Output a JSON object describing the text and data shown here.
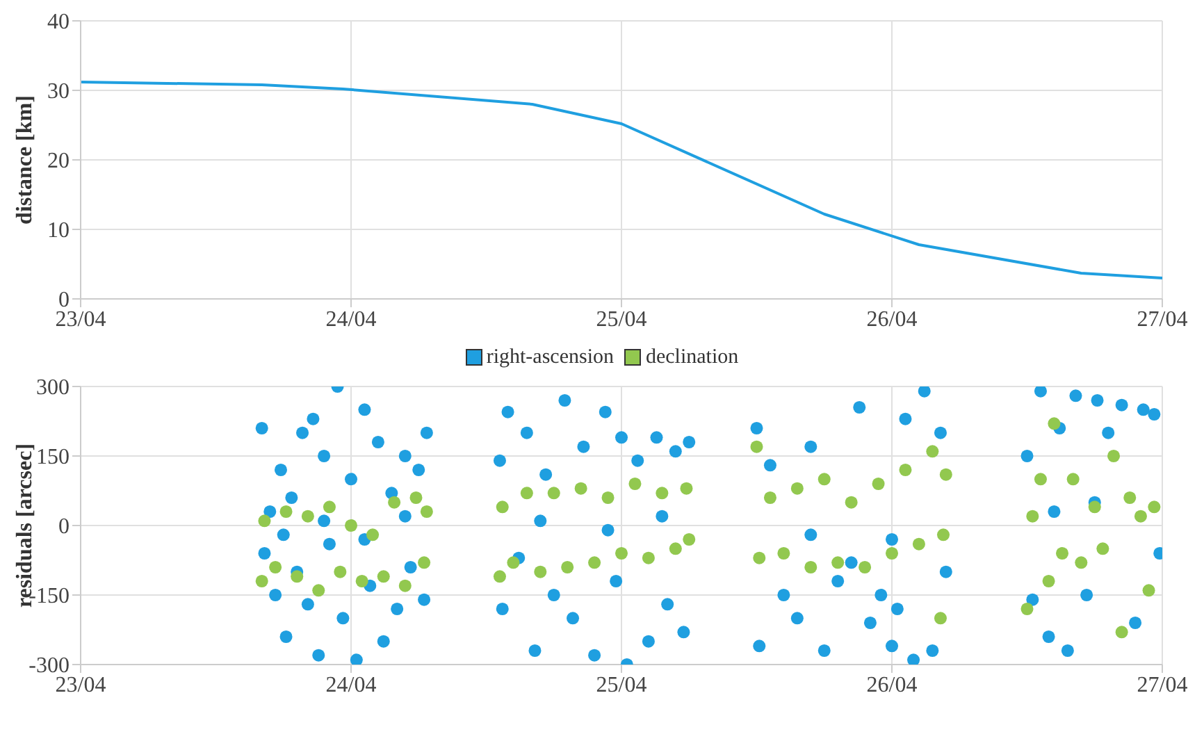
{
  "chart_data": [
    {
      "type": "line",
      "ylabel": "distance [km]",
      "x": [
        "--04-23T00:00",
        "--04-23T16:05",
        "--04-23T23:17",
        "--04-24T16:05",
        "--04-25T00:00",
        "--04-25T18:00",
        "--04-26T02:24",
        "--04-26T16:48",
        "--04-27T00:00"
      ],
      "series": [
        {
          "color": "#1f9fe0",
          "values": [
            31.2,
            30.8,
            30.2,
            28,
            25.2,
            12.2,
            7.8,
            3.7,
            3.0
          ]
        }
      ],
      "xlim": [
        "--04-23",
        "--04-27"
      ],
      "xticks": [
        {
          "value": "--04-23",
          "label": "23/04"
        },
        {
          "value": "--04-24",
          "label": "24/04"
        },
        {
          "value": "--04-25",
          "label": "25/04"
        },
        {
          "value": "--04-26",
          "label": "26/04"
        },
        {
          "value": "--04-27",
          "label": "27/04"
        }
      ],
      "ylim": [
        0,
        40
      ],
      "yticks": [
        0,
        10,
        20,
        30,
        40
      ],
      "grid": true,
      "marker": "none",
      "line_style": "solid"
    },
    {
      "type": "scatter",
      "ylabel": "residuals [arcsec]",
      "legend": "top",
      "grid": true,
      "marker": "circle",
      "series": [
        {
          "name": "right-ascension",
          "color": "#1f9fe0",
          "x": [
            "--04-23T16:05",
            "--04-23T16:19",
            "--04-23T16:48",
            "--04-23T17:17",
            "--04-23T17:46",
            "--04-23T18:14",
            "--04-23T18:43",
            "--04-23T19:12",
            "--04-23T19:41",
            "--04-23T20:10",
            "--04-23T20:38",
            "--04-23T21:07",
            "--04-23T21:36",
            "--04-23T22:05",
            "--04-23T22:48",
            "--04-23T23:17",
            "--04-24T00:00",
            "--04-24T00:29",
            "--04-24T01:12",
            "--04-24T01:41",
            "--04-24T02:24",
            "--04-24T02:53",
            "--04-24T03:36",
            "--04-24T04:05",
            "--04-24T04:48",
            "--04-24T05:17",
            "--04-24T06:00",
            "--04-24T06:29",
            "--04-24T06:43",
            "--04-23T18:00",
            "--04-23T21:36",
            "--04-24T01:12",
            "--04-24T04:48",
            "--04-24T13:12",
            "--04-24T13:26",
            "--04-24T13:55",
            "--04-24T14:53",
            "--04-24T15:36",
            "--04-24T16:19",
            "--04-24T17:17",
            "--04-24T18:00",
            "--04-24T18:58",
            "--04-24T19:41",
            "--04-24T20:38",
            "--04-24T21:36",
            "--04-24T22:34",
            "--04-24T23:31",
            "--04-25T00:00",
            "--04-25T00:29",
            "--04-25T01:26",
            "--04-25T02:24",
            "--04-25T03:07",
            "--04-25T04:05",
            "--04-25T04:48",
            "--04-25T05:31",
            "--04-25T06:00",
            "--04-24T16:48",
            "--04-24T22:48",
            "--04-25T03:36",
            "--04-25T12:00",
            "--04-25T12:14",
            "--04-25T13:12",
            "--04-25T14:24",
            "--04-25T15:36",
            "--04-25T16:48",
            "--04-25T18:00",
            "--04-25T19:12",
            "--04-25T20:24",
            "--04-25T21:07",
            "--04-25T22:05",
            "--04-25T23:02",
            "--04-26T00:00",
            "--04-26T00:29",
            "--04-26T01:12",
            "--04-26T01:55",
            "--04-26T02:53",
            "--04-26T03:36",
            "--04-26T04:19",
            "--04-26T04:48",
            "--04-25T16:48",
            "--04-26T00:00",
            "--04-26T12:00",
            "--04-26T12:29",
            "--04-26T13:12",
            "--04-26T13:55",
            "--04-26T14:53",
            "--04-26T15:36",
            "--04-26T16:19",
            "--04-26T17:17",
            "--04-26T18:14",
            "--04-26T19:12",
            "--04-26T20:24",
            "--04-26T21:36",
            "--04-26T22:19",
            "--04-26T23:17",
            "--04-26T23:46",
            "--04-26T14:24",
            "--04-26T18:00"
          ],
          "values": [
            210,
            -60,
            30,
            -150,
            120,
            -240,
            60,
            -100,
            200,
            -170,
            230,
            -280,
            150,
            -40,
            300,
            -200,
            100,
            -290,
            250,
            -130,
            180,
            -250,
            70,
            -180,
            150,
            -90,
            120,
            -160,
            200,
            -20,
            10,
            -30,
            20,
            140,
            -180,
            245,
            -70,
            200,
            -270,
            110,
            -150,
            270,
            -200,
            170,
            -280,
            245,
            -120,
            190,
            -300,
            140,
            -250,
            190,
            -170,
            160,
            -230,
            180,
            10,
            -10,
            20,
            210,
            -260,
            130,
            -150,
            -200,
            170,
            -270,
            -120,
            -80,
            255,
            -210,
            -150,
            -260,
            -180,
            230,
            -290,
            290,
            -270,
            200,
            -100,
            -20,
            -30,
            150,
            -160,
            290,
            -240,
            210,
            -270,
            280,
            -150,
            270,
            200,
            260,
            -210,
            250,
            240,
            -60,
            30,
            50
          ]
        },
        {
          "name": "declination",
          "color": "#92c84f",
          "x": [
            "--04-23T16:05",
            "--04-23T16:19",
            "--04-23T17:17",
            "--04-23T18:14",
            "--04-23T19:12",
            "--04-23T20:10",
            "--04-23T21:07",
            "--04-23T22:05",
            "--04-23T23:02",
            "--04-24T00:00",
            "--04-24T00:58",
            "--04-24T01:55",
            "--04-24T02:53",
            "--04-24T03:50",
            "--04-24T04:48",
            "--04-24T05:46",
            "--04-24T06:29",
            "--04-24T06:43",
            "--04-24T13:12",
            "--04-24T13:26",
            "--04-24T14:24",
            "--04-24T15:36",
            "--04-24T16:48",
            "--04-24T18:00",
            "--04-24T19:12",
            "--04-24T20:24",
            "--04-24T21:36",
            "--04-24T22:48",
            "--04-25T00:00",
            "--04-25T01:12",
            "--04-25T02:24",
            "--04-25T03:36",
            "--04-25T04:48",
            "--04-25T05:46",
            "--04-25T06:00",
            "--04-25T12:00",
            "--04-25T12:14",
            "--04-25T13:12",
            "--04-25T14:24",
            "--04-25T15:36",
            "--04-25T16:48",
            "--04-25T18:00",
            "--04-25T19:12",
            "--04-25T20:24",
            "--04-25T21:36",
            "--04-25T22:48",
            "--04-26T00:00",
            "--04-26T01:12",
            "--04-26T02:24",
            "--04-26T03:36",
            "--04-26T04:19",
            "--04-26T04:48",
            "--04-26T04:34",
            "--04-26T12:00",
            "--04-26T12:29",
            "--04-26T13:12",
            "--04-26T13:55",
            "--04-26T14:24",
            "--04-26T15:07",
            "--04-26T16:05",
            "--04-26T16:48",
            "--04-26T18:00",
            "--04-26T18:43",
            "--04-26T19:41",
            "--04-26T20:24",
            "--04-26T21:07",
            "--04-26T22:05",
            "--04-26T22:48",
            "--04-26T23:17"
          ],
          "values": [
            -120,
            10,
            -90,
            30,
            -110,
            20,
            -140,
            40,
            -100,
            0,
            -120,
            -20,
            -110,
            50,
            -130,
            60,
            -80,
            30,
            -110,
            40,
            -80,
            70,
            -100,
            70,
            -90,
            80,
            -80,
            60,
            -60,
            90,
            -70,
            70,
            -50,
            80,
            -30,
            170,
            -70,
            60,
            -60,
            80,
            -90,
            100,
            -80,
            50,
            -90,
            90,
            -60,
            120,
            -40,
            160,
            -200,
            110,
            -20,
            -180,
            20,
            100,
            -120,
            220,
            -60,
            100,
            -80,
            40,
            -50,
            150,
            -230,
            60,
            20,
            -140,
            40
          ]
        }
      ],
      "xlim": [
        "--04-23",
        "--04-27"
      ],
      "xticks": [
        {
          "value": "--04-23",
          "label": "23/04"
        },
        {
          "value": "--04-24",
          "label": "24/04"
        },
        {
          "value": "--04-25",
          "label": "25/04"
        },
        {
          "value": "--04-26",
          "label": "26/04"
        },
        {
          "value": "--04-27",
          "label": "27/04"
        }
      ],
      "ylim": [
        -300,
        300
      ],
      "yticks": [
        -300,
        -150,
        0,
        150,
        300
      ]
    }
  ]
}
